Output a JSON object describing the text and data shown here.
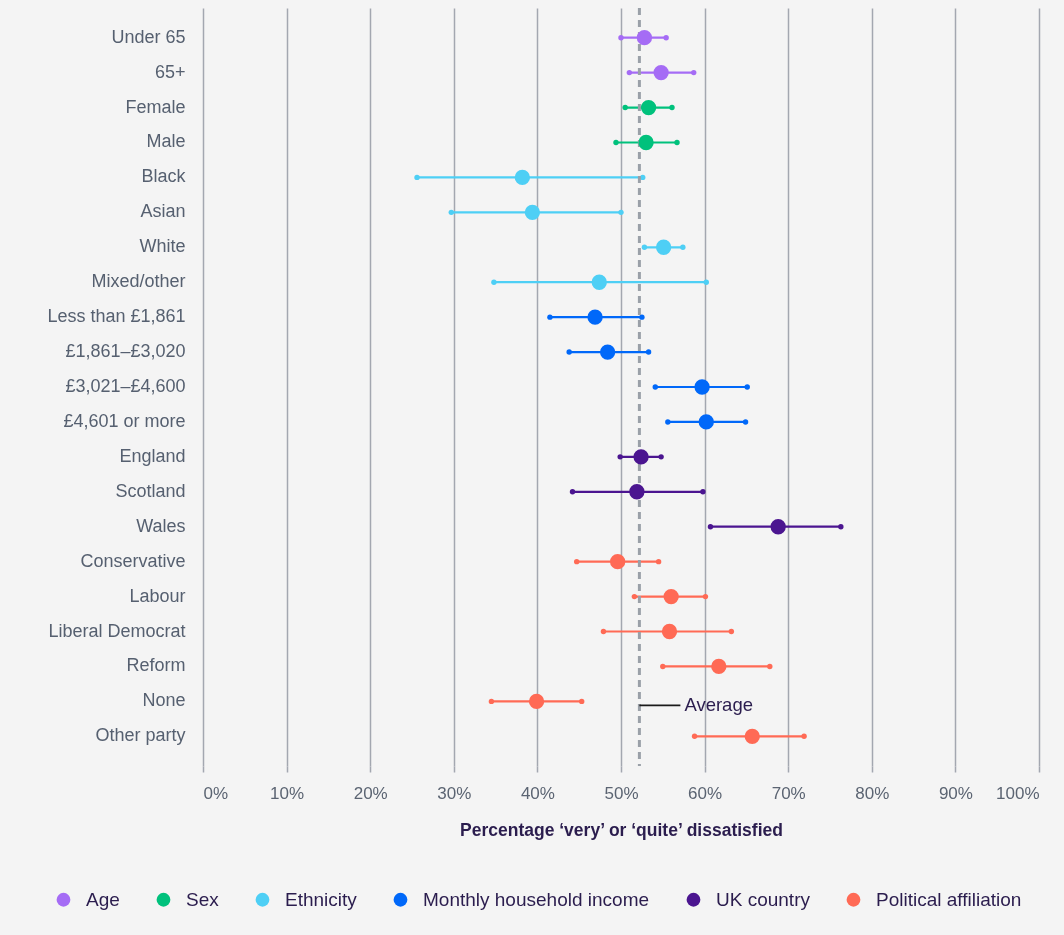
{
  "chart_data": {
    "type": "scatter",
    "orientation": "horizontal",
    "marker": "circle",
    "grid": "x",
    "legend": "bottom",
    "xlabel": "Percentage ‘very’ or ‘quite’ dissatisfied",
    "xlim": [
      0,
      100
    ],
    "xticks": [
      {
        "value": 0,
        "label": "0%"
      },
      {
        "value": 10,
        "label": "10%"
      },
      {
        "value": 20,
        "label": "20%"
      },
      {
        "value": 30,
        "label": "30%"
      },
      {
        "value": 40,
        "label": "40%"
      },
      {
        "value": 50,
        "label": "50%"
      },
      {
        "value": 60,
        "label": "60%"
      },
      {
        "value": 70,
        "label": "70%"
      },
      {
        "value": 80,
        "label": "80%"
      },
      {
        "value": 90,
        "label": "90%"
      },
      {
        "value": 100,
        "label": "100%"
      }
    ],
    "categories": [
      "Under 65",
      "65+",
      "Female",
      "Male",
      "Black",
      "Asian",
      "White",
      "Mixed/other",
      "Less than £1,861",
      "£1,861–£3,020",
      "£3,021–£4,600",
      "£4,601 or more",
      "England",
      "Scotland",
      "Wales",
      "Conservative",
      "Labour",
      "Liberal Democrat",
      "Reform",
      "None",
      "Other party"
    ],
    "series": [
      {
        "name": "Age",
        "color": "#a56cf5",
        "values": [
          52.8,
          54.8,
          null,
          null,
          null,
          null,
          null,
          null,
          null,
          null,
          null,
          null,
          null,
          null,
          null,
          null,
          null,
          null,
          null,
          null,
          null
        ],
        "errors": [
          [
            50.0,
            55.4
          ],
          [
            51.0,
            58.7
          ],
          null,
          null,
          null,
          null,
          null,
          null,
          null,
          null,
          null,
          null,
          null,
          null,
          null,
          null,
          null,
          null,
          null,
          null,
          null
        ]
      },
      {
        "name": "Sex",
        "color": "#00c17c",
        "values": [
          null,
          null,
          53.3,
          53.0,
          null,
          null,
          null,
          null,
          null,
          null,
          null,
          null,
          null,
          null,
          null,
          null,
          null,
          null,
          null,
          null,
          null
        ],
        "errors": [
          null,
          null,
          [
            50.5,
            56.1
          ],
          [
            49.4,
            56.7
          ],
          null,
          null,
          null,
          null,
          null,
          null,
          null,
          null,
          null,
          null,
          null,
          null,
          null,
          null,
          null,
          null,
          null
        ]
      },
      {
        "name": "Ethnicity",
        "color": "#4ecff5",
        "values": [
          null,
          null,
          null,
          null,
          38.2,
          39.4,
          55.1,
          47.4,
          null,
          null,
          null,
          null,
          null,
          null,
          null,
          null,
          null,
          null,
          null,
          null,
          null
        ],
        "errors": [
          null,
          null,
          null,
          null,
          [
            25.6,
            52.6
          ],
          [
            29.7,
            50.0
          ],
          [
            52.8,
            57.4
          ],
          [
            34.8,
            60.2
          ],
          null,
          null,
          null,
          null,
          null,
          null,
          null,
          null,
          null,
          null,
          null,
          null,
          null
        ]
      },
      {
        "name": "Monthly household income",
        "color": "#0068f9",
        "values": [
          null,
          null,
          null,
          null,
          null,
          null,
          null,
          null,
          46.9,
          48.4,
          59.7,
          60.2,
          null,
          null,
          null,
          null,
          null,
          null,
          null,
          null,
          null
        ],
        "errors": [
          null,
          null,
          null,
          null,
          null,
          null,
          null,
          null,
          [
            41.5,
            52.5
          ],
          [
            43.8,
            53.3
          ],
          [
            54.1,
            65.1
          ],
          [
            55.6,
            64.9
          ],
          null,
          null,
          null,
          null,
          null,
          null,
          null,
          null,
          null
        ]
      },
      {
        "name": "UK country",
        "color": "#4b1590",
        "values": [
          null,
          null,
          null,
          null,
          null,
          null,
          null,
          null,
          null,
          null,
          null,
          null,
          52.4,
          51.9,
          68.8,
          null,
          null,
          null,
          null,
          null,
          null
        ],
        "errors": [
          null,
          null,
          null,
          null,
          null,
          null,
          null,
          null,
          null,
          null,
          null,
          null,
          [
            49.9,
            54.8
          ],
          [
            44.2,
            59.8
          ],
          [
            60.7,
            76.3
          ],
          null,
          null,
          null,
          null,
          null,
          null
        ]
      },
      {
        "name": "Political affiliation",
        "color": "#ff6a55",
        "values": [
          null,
          null,
          null,
          null,
          null,
          null,
          null,
          null,
          null,
          null,
          null,
          null,
          null,
          null,
          null,
          49.6,
          56.0,
          55.8,
          61.7,
          39.9,
          65.7
        ],
        "errors": [
          null,
          null,
          null,
          null,
          null,
          null,
          null,
          null,
          null,
          null,
          null,
          null,
          null,
          null,
          null,
          [
            44.7,
            54.5
          ],
          [
            51.6,
            60.1
          ],
          [
            47.9,
            63.2
          ],
          [
            55.0,
            67.8
          ],
          [
            34.5,
            45.3
          ],
          [
            58.8,
            71.9
          ]
        ]
      }
    ],
    "ref_lines": [
      {
        "axis": "x",
        "value": 52.2,
        "label": "Average",
        "color": "#9aa0a8",
        "line_style": "dashed"
      }
    ]
  }
}
